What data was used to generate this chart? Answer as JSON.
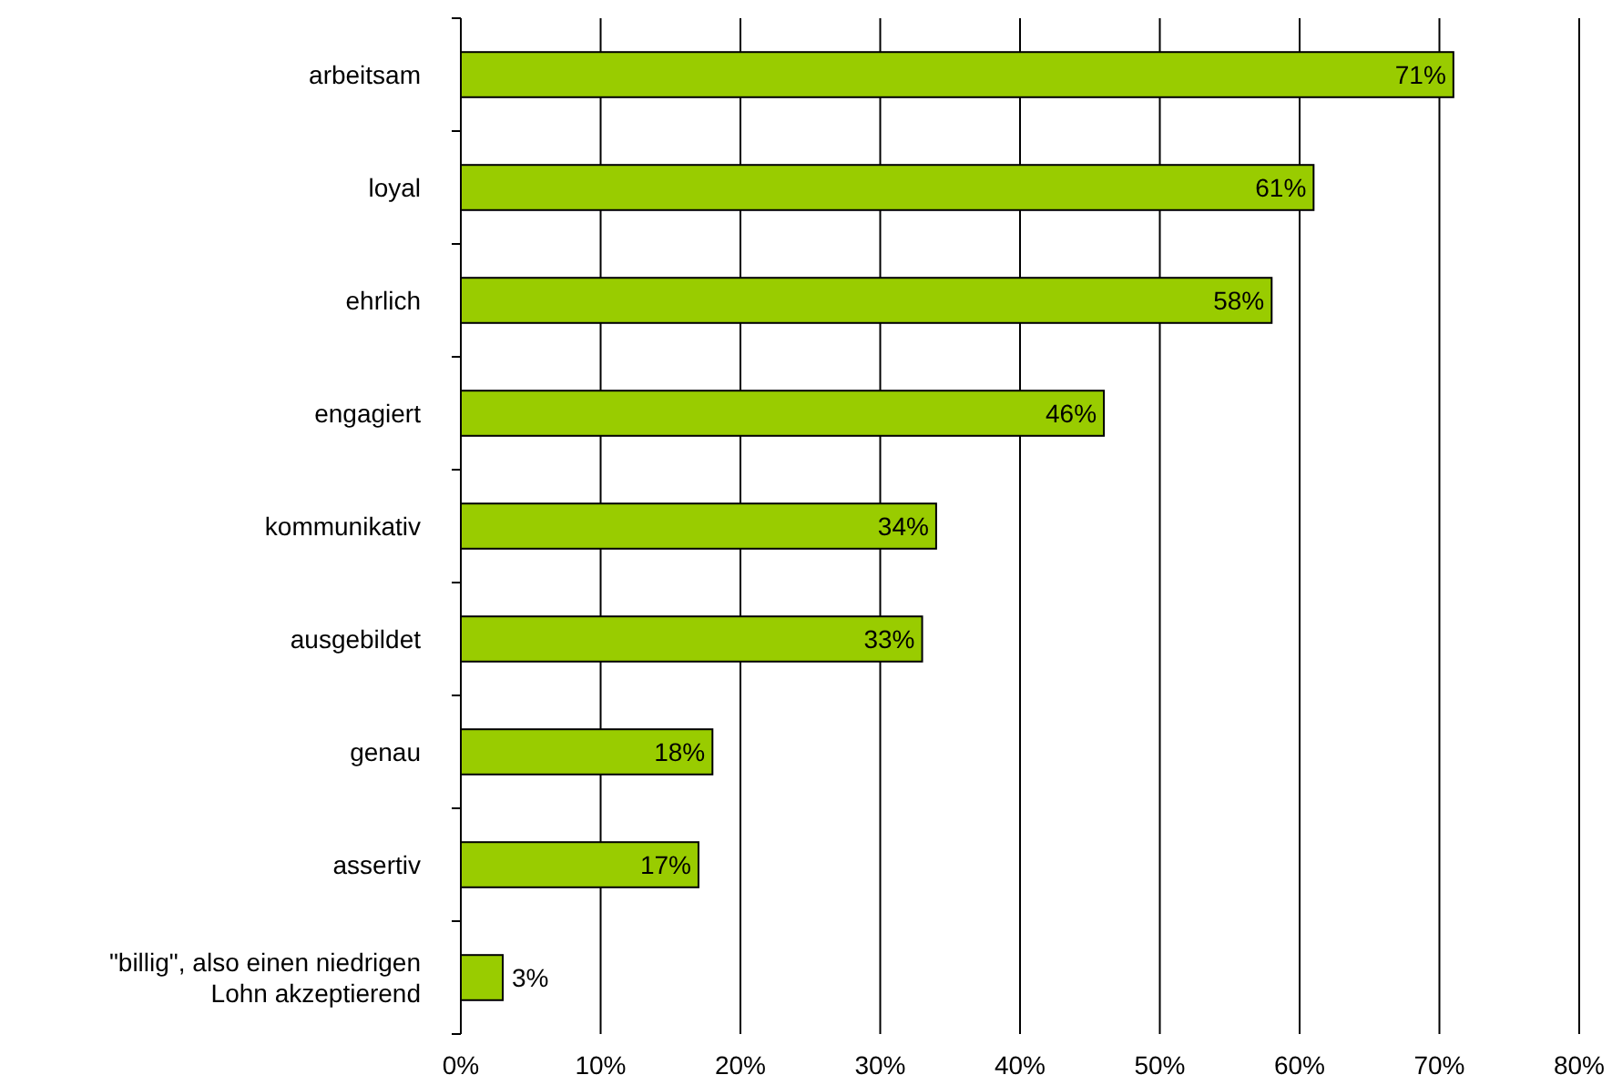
{
  "chart_data": {
    "type": "bar",
    "orientation": "horizontal",
    "categories": [
      "arbeitsam",
      "loyal",
      "ehrlich",
      "engagiert",
      "kommunikativ",
      "ausgebildet",
      "genau",
      "assertiv",
      "\"billig\", also einen niedrigen Lohn akzeptierend"
    ],
    "values": [
      71,
      61,
      58,
      46,
      34,
      33,
      18,
      17,
      3
    ],
    "value_labels": [
      "71%",
      "61%",
      "58%",
      "46%",
      "34%",
      "33%",
      "18%",
      "17%",
      "3%"
    ],
    "color": "#99cc00",
    "xlim": [
      0,
      80
    ],
    "xticks": [
      {
        "value": 0,
        "label": "0%"
      },
      {
        "value": 10,
        "label": "10%"
      },
      {
        "value": 20,
        "label": "20%"
      },
      {
        "value": 30,
        "label": "30%"
      },
      {
        "value": 40,
        "label": "40%"
      },
      {
        "value": 50,
        "label": "50%"
      },
      {
        "value": 60,
        "label": "60%"
      },
      {
        "value": 70,
        "label": "70%"
      },
      {
        "value": 80,
        "label": "80%"
      }
    ],
    "grid": "x"
  }
}
